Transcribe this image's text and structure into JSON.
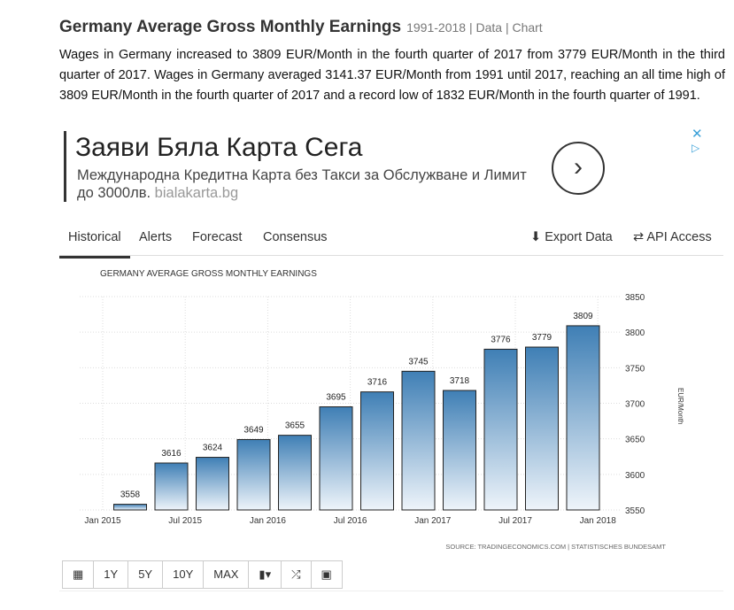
{
  "header": {
    "title": "Germany Average Gross Monthly Earnings",
    "meta": "1991-2018 | Data | Chart"
  },
  "description": "Wages in Germany increased to 3809 EUR/Month in the fourth quarter of 2017 from 3779 EUR/Month in the third quarter of 2017. Wages in Germany averaged 3141.37 EUR/Month from 1991 until 2017, reaching an all time high of 3809 EUR/Month in the fourth quarter of 2017 and a record low of 1832 EUR/Month in the fourth quarter of 1991.",
  "ad": {
    "headline": "Заяви Бяла Карта Сега",
    "text": "Международна Кредитна Карта без Такси за Обслужване и Лимит до 3000лв.",
    "domain": "bialakarta.bg"
  },
  "tabs": [
    "Historical",
    "Alerts",
    "Forecast",
    "Consensus"
  ],
  "actions": {
    "export": "Export Data",
    "api": "API Access"
  },
  "toolbar": [
    "1Y",
    "5Y",
    "10Y",
    "MAX"
  ],
  "colors": {
    "bar_top": "#3f7fb5",
    "bar_bottom": "#eef4fa"
  },
  "chart_data": {
    "type": "bar",
    "title": "GERMANY AVERAGE GROSS MONTHLY EARNINGS",
    "ylabel": "EUR/Month",
    "ylim": [
      3550,
      3850
    ],
    "yticks": [
      3550,
      3600,
      3650,
      3700,
      3750,
      3800,
      3850
    ],
    "xticks": [
      "Jan 2015",
      "Jul 2015",
      "Jan 2016",
      "Jul 2016",
      "Jan 2017",
      "Jul 2017",
      "Jan 2018"
    ],
    "categories": [
      "2015Q1",
      "2015Q2",
      "2015Q3",
      "2015Q4",
      "2016Q1",
      "2016Q2",
      "2016Q3",
      "2016Q4",
      "2017Q1",
      "2017Q2",
      "2017Q3",
      "2017Q4"
    ],
    "values": [
      3558,
      3616,
      3624,
      3649,
      3655,
      3695,
      3716,
      3745,
      3718,
      3776,
      3779,
      3809
    ],
    "source": "SOURCE: TRADINGECONOMICS.COM | STATISTISCHES BUNDESAMT"
  }
}
